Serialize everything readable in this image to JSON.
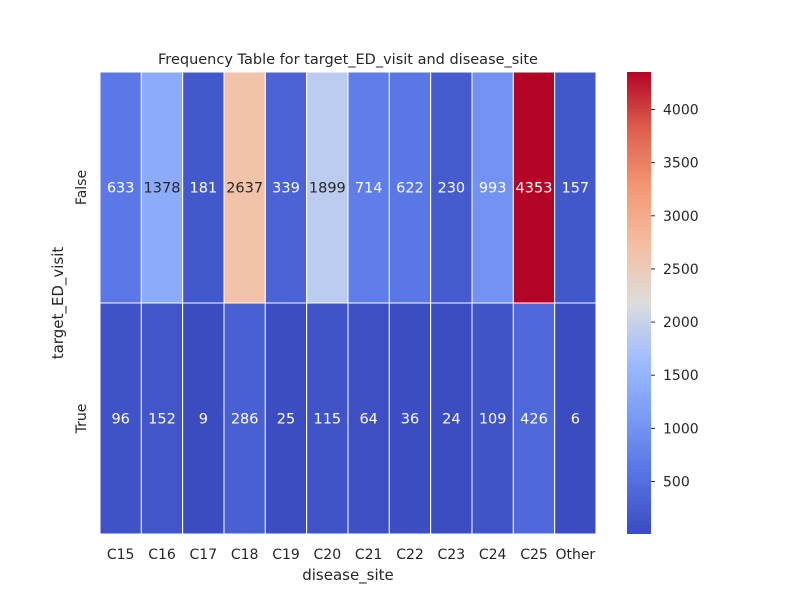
{
  "chart_data": {
    "type": "heatmap",
    "title": "Frequency Table for target_ED_visit and disease_site",
    "xlabel": "disease_site",
    "ylabel": "target_ED_visit",
    "x_categories": [
      "C15",
      "C16",
      "C17",
      "C18",
      "C19",
      "C20",
      "C21",
      "C22",
      "C23",
      "C24",
      "C25",
      "Other"
    ],
    "y_categories": [
      "False",
      "True"
    ],
    "values": [
      [
        633,
        1378,
        181,
        2637,
        339,
        1899,
        714,
        622,
        230,
        993,
        4353,
        157
      ],
      [
        96,
        152,
        9,
        286,
        25,
        115,
        64,
        36,
        24,
        109,
        426,
        6
      ]
    ],
    "colorbar": {
      "colormap": "coolwarm",
      "min": 6,
      "max": 4353,
      "ticks": [
        500,
        1000,
        1500,
        2000,
        2500,
        3000,
        3500,
        4000
      ]
    }
  }
}
